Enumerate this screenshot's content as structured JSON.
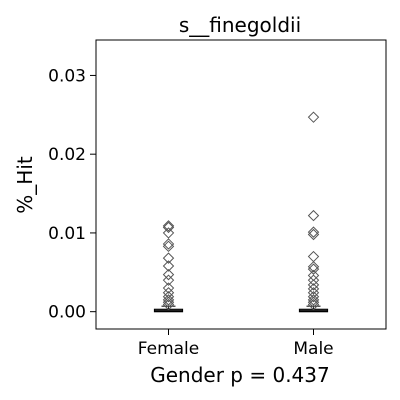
{
  "chart_data": {
    "type": "box",
    "title": "s__finegoldii",
    "xlabel": "Gender p = 0.437",
    "ylabel": "%_Hit",
    "categories": [
      "Female",
      "Male"
    ],
    "ylim": [
      -0.0022,
      0.0345
    ],
    "yticks": [
      0.0,
      0.01,
      0.02,
      0.03
    ],
    "ytick_labels": [
      "0.00",
      "0.01",
      "0.02",
      "0.03"
    ],
    "grid": false,
    "legend": "none",
    "boxes": [
      {
        "category": "Female",
        "q1": 0.0,
        "median": 0.0001,
        "q3": 0.0003,
        "whisker_low": 0.0,
        "whisker_high": 0.0007,
        "outliers": [
          0.0109,
          0.0107,
          0.01,
          0.0086,
          0.0083,
          0.0068,
          0.0058,
          0.0047,
          0.004,
          0.003,
          0.0024,
          0.0019,
          0.0015,
          0.0012,
          0.0009
        ]
      },
      {
        "category": "Male",
        "q1": 0.0,
        "median": 0.0001,
        "q3": 0.0003,
        "whisker_low": 0.0,
        "whisker_high": 0.0007,
        "outliers": [
          0.0247,
          0.0122,
          0.0101,
          0.0098,
          0.007,
          0.0057,
          0.0054,
          0.0046,
          0.004,
          0.0034,
          0.0029,
          0.0024,
          0.0019,
          0.0015,
          0.0012,
          0.0009
        ]
      }
    ],
    "colors": {
      "box_edge": "#000000",
      "outlier": "#555555"
    }
  }
}
